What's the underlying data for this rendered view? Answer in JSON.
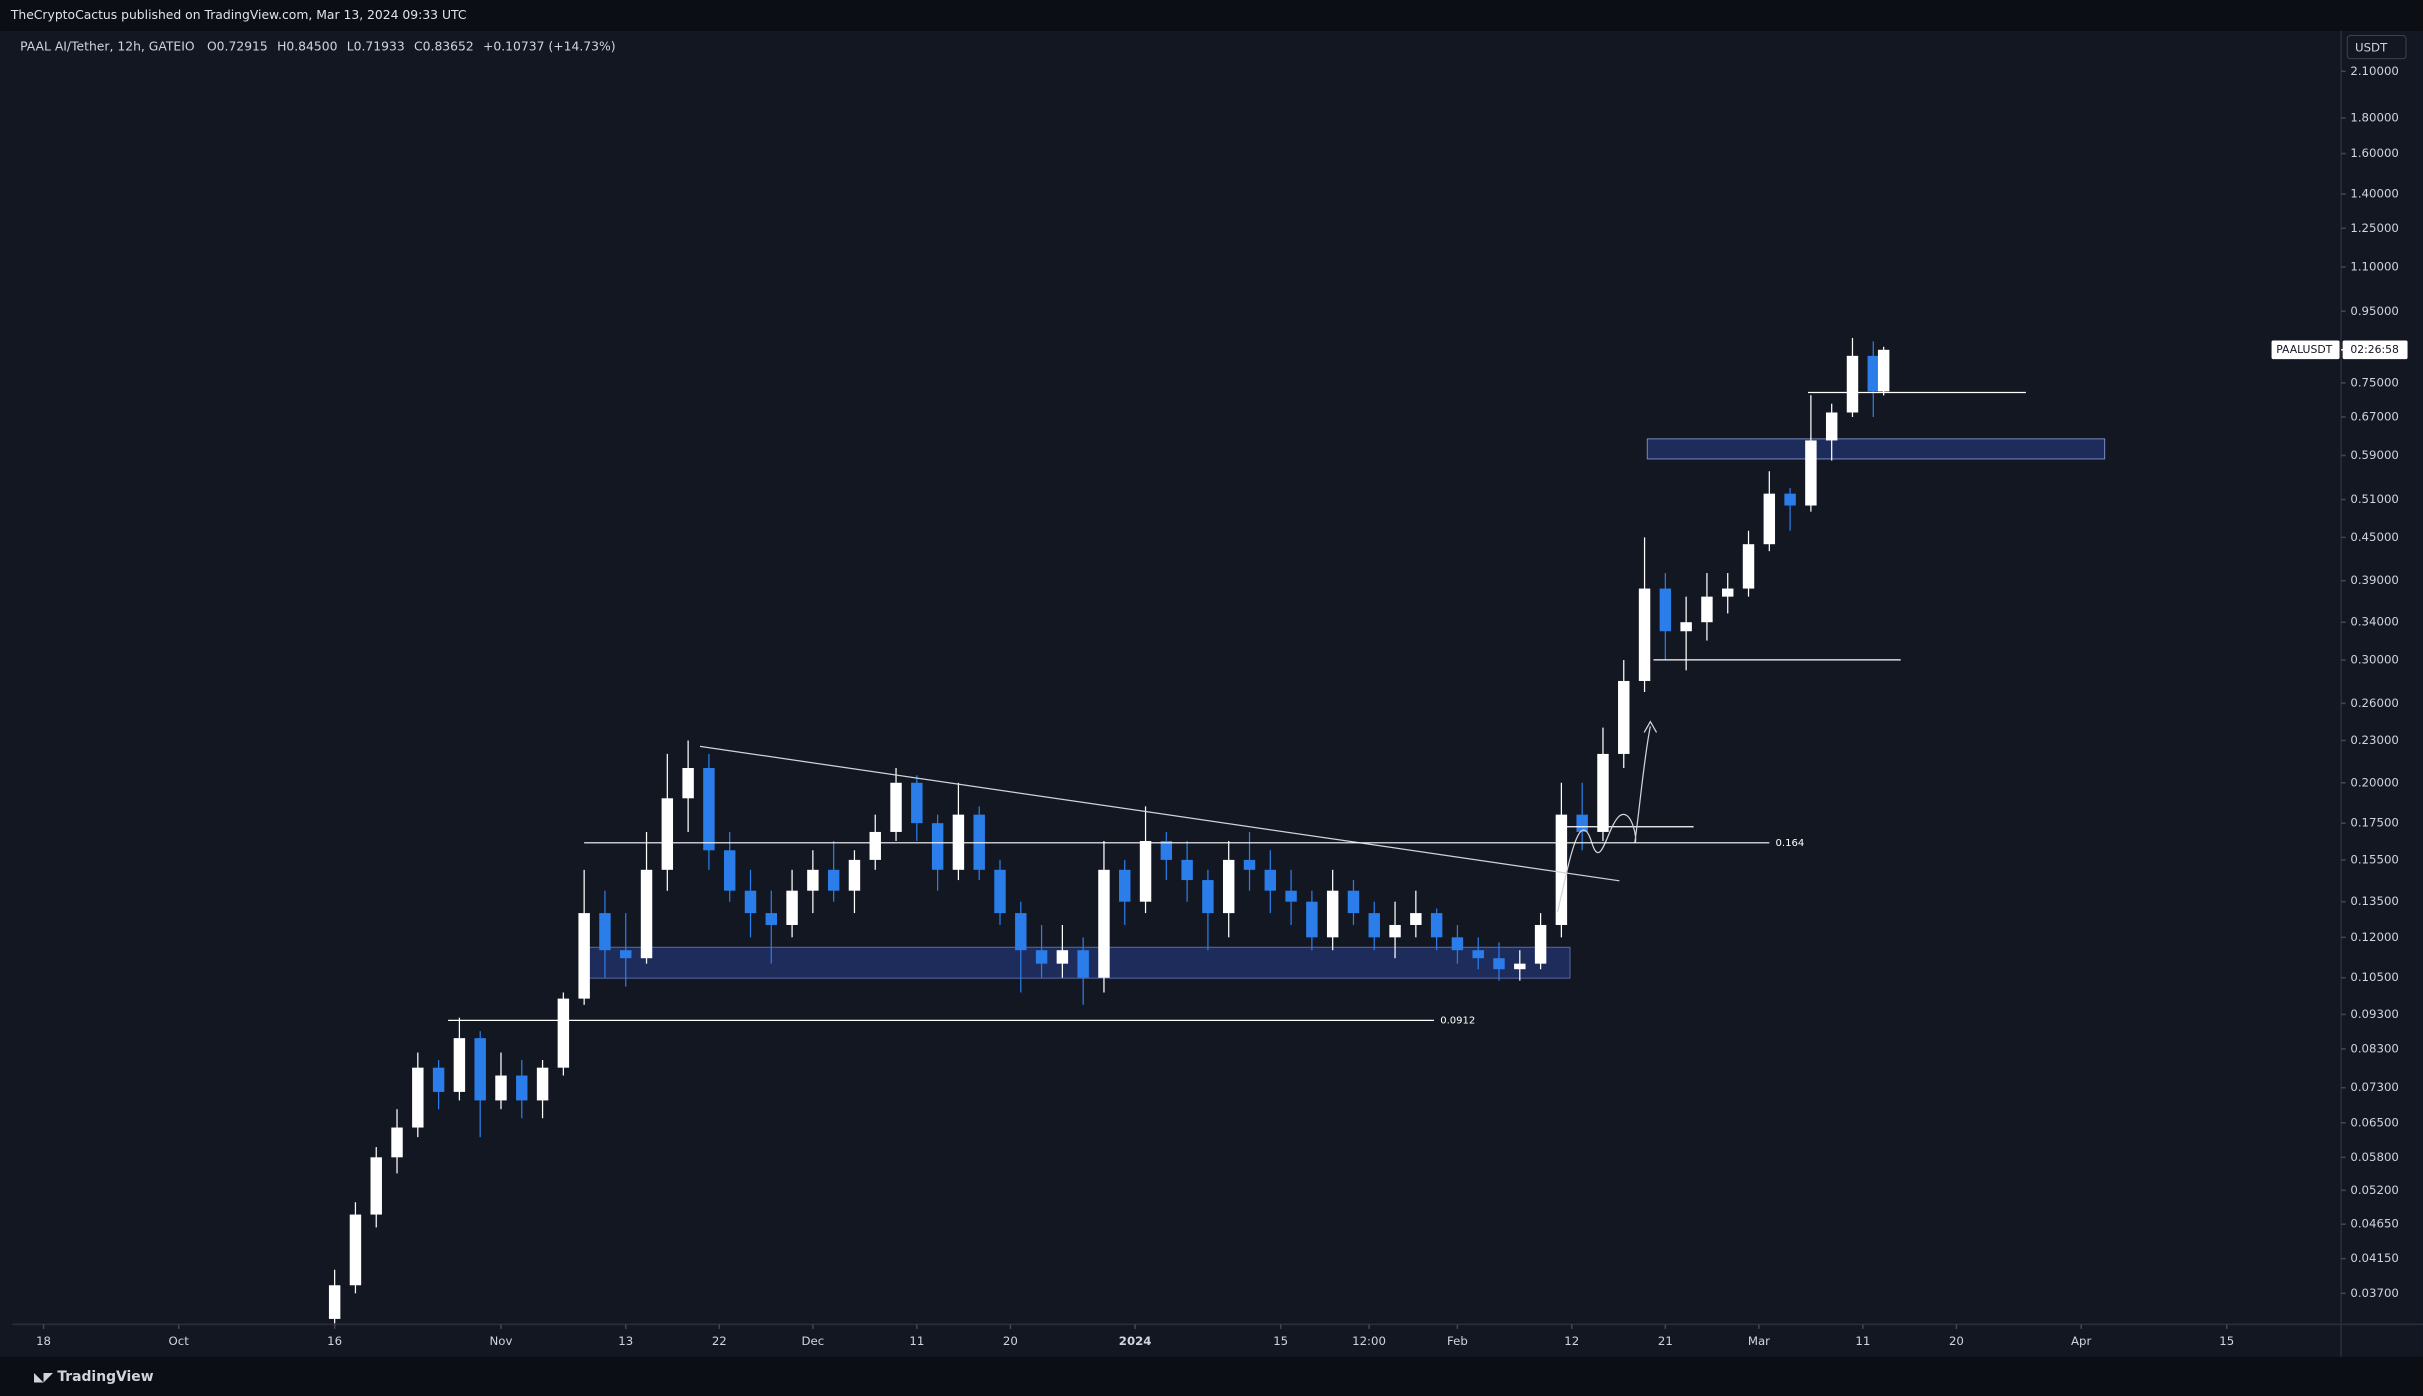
{
  "header": {
    "publisher": "TheCryptoCactus published on TradingView.com, Mar 13, 2024 09:33 UTC"
  },
  "chart_data": {
    "type": "candlestick",
    "legend": {
      "symbol": "PAAL AI/Tether, 12h, GATEIO",
      "open": "O0.72915",
      "high": "H0.84500",
      "low": "L0.71933",
      "close": "C0.83652",
      "change": "+0.10737 (+14.73%)"
    },
    "x": [
      "2023-10-16",
      "2023-10-18",
      "2023-10-20",
      "2023-10-22",
      "2023-10-24",
      "2023-10-26",
      "2023-10-28",
      "2023-10-30",
      "2023-11-01",
      "2023-11-03",
      "2023-11-05",
      "2023-11-07",
      "2023-11-09",
      "2023-11-11",
      "2023-11-13",
      "2023-11-15",
      "2023-11-17",
      "2023-11-19",
      "2023-11-21",
      "2023-11-23",
      "2023-11-25",
      "2023-11-27",
      "2023-11-29",
      "2023-12-01",
      "2023-12-03",
      "2023-12-05",
      "2023-12-07",
      "2023-12-09",
      "2023-12-11",
      "2023-12-13",
      "2023-12-15",
      "2023-12-17",
      "2023-12-19",
      "2023-12-21",
      "2023-12-23",
      "2023-12-25",
      "2023-12-27",
      "2023-12-29",
      "2023-12-31",
      "2024-01-02",
      "2024-01-04",
      "2024-01-06",
      "2024-01-08",
      "2024-01-10",
      "2024-01-12",
      "2024-01-14",
      "2024-01-16",
      "2024-01-18",
      "2024-01-20",
      "2024-01-22",
      "2024-01-24",
      "2024-01-26",
      "2024-01-28",
      "2024-01-30",
      "2024-02-01",
      "2024-02-03",
      "2024-02-05",
      "2024-02-07",
      "2024-02-09",
      "2024-02-11",
      "2024-02-13",
      "2024-02-15",
      "2024-02-17",
      "2024-02-19",
      "2024-02-21",
      "2024-02-23",
      "2024-02-25",
      "2024-02-27",
      "2024-02-29",
      "2024-03-02",
      "2024-03-04",
      "2024-03-06",
      "2024-03-08",
      "2024-03-10",
      "2024-03-12",
      "2024-03-13"
    ],
    "open": [
      0.034,
      0.038,
      0.048,
      0.058,
      0.064,
      0.078,
      0.072,
      0.086,
      0.07,
      0.076,
      0.07,
      0.078,
      0.098,
      0.13,
      0.115,
      0.112,
      0.15,
      0.19,
      0.21,
      0.16,
      0.14,
      0.13,
      0.125,
      0.14,
      0.15,
      0.14,
      0.155,
      0.17,
      0.2,
      0.175,
      0.15,
      0.18,
      0.15,
      0.13,
      0.115,
      0.11,
      0.115,
      0.105,
      0.15,
      0.135,
      0.165,
      0.155,
      0.145,
      0.13,
      0.155,
      0.15,
      0.14,
      0.135,
      0.12,
      0.14,
      0.13,
      0.12,
      0.125,
      0.13,
      0.12,
      0.115,
      0.112,
      0.108,
      0.11,
      0.125,
      0.18,
      0.17,
      0.22,
      0.28,
      0.38,
      0.33,
      0.34,
      0.37,
      0.38,
      0.44,
      0.52,
      0.5,
      0.62,
      0.68,
      0.82,
      0.72915
    ],
    "high": [
      0.04,
      0.05,
      0.06,
      0.068,
      0.082,
      0.08,
      0.092,
      0.088,
      0.082,
      0.08,
      0.08,
      0.1,
      0.15,
      0.14,
      0.13,
      0.17,
      0.22,
      0.23,
      0.22,
      0.17,
      0.15,
      0.14,
      0.15,
      0.16,
      0.165,
      0.16,
      0.18,
      0.21,
      0.205,
      0.18,
      0.2,
      0.185,
      0.155,
      0.135,
      0.125,
      0.125,
      0.12,
      0.165,
      0.155,
      0.185,
      0.17,
      0.165,
      0.15,
      0.165,
      0.17,
      0.16,
      0.15,
      0.14,
      0.15,
      0.145,
      0.135,
      0.135,
      0.14,
      0.132,
      0.125,
      0.12,
      0.118,
      0.115,
      0.13,
      0.2,
      0.2,
      0.24,
      0.3,
      0.45,
      0.4,
      0.37,
      0.4,
      0.4,
      0.46,
      0.56,
      0.53,
      0.72,
      0.7,
      0.87,
      0.86,
      0.845
    ],
    "low": [
      0.0335,
      0.037,
      0.046,
      0.055,
      0.062,
      0.068,
      0.07,
      0.062,
      0.068,
      0.066,
      0.066,
      0.076,
      0.096,
      0.105,
      0.102,
      0.11,
      0.14,
      0.17,
      0.15,
      0.135,
      0.12,
      0.11,
      0.12,
      0.13,
      0.135,
      0.13,
      0.15,
      0.165,
      0.165,
      0.14,
      0.145,
      0.145,
      0.125,
      0.1,
      0.105,
      0.105,
      0.096,
      0.1,
      0.125,
      0.13,
      0.145,
      0.135,
      0.115,
      0.12,
      0.14,
      0.13,
      0.125,
      0.115,
      0.115,
      0.125,
      0.115,
      0.112,
      0.12,
      0.115,
      0.11,
      0.108,
      0.104,
      0.104,
      0.108,
      0.12,
      0.16,
      0.165,
      0.21,
      0.27,
      0.3,
      0.29,
      0.32,
      0.35,
      0.37,
      0.43,
      0.46,
      0.49,
      0.58,
      0.67,
      0.67,
      0.71933
    ],
    "close": [
      0.038,
      0.048,
      0.058,
      0.064,
      0.078,
      0.072,
      0.086,
      0.07,
      0.076,
      0.07,
      0.078,
      0.098,
      0.13,
      0.115,
      0.112,
      0.15,
      0.19,
      0.21,
      0.16,
      0.14,
      0.13,
      0.125,
      0.14,
      0.15,
      0.14,
      0.155,
      0.17,
      0.2,
      0.175,
      0.15,
      0.18,
      0.15,
      0.13,
      0.115,
      0.11,
      0.115,
      0.105,
      0.15,
      0.135,
      0.165,
      0.155,
      0.145,
      0.13,
      0.155,
      0.15,
      0.14,
      0.135,
      0.12,
      0.14,
      0.13,
      0.12,
      0.125,
      0.13,
      0.12,
      0.115,
      0.112,
      0.108,
      0.11,
      0.125,
      0.18,
      0.17,
      0.22,
      0.28,
      0.38,
      0.33,
      0.34,
      0.37,
      0.38,
      0.44,
      0.52,
      0.5,
      0.62,
      0.68,
      0.82,
      0.72915,
      0.83652
    ],
    "up_color": "#ffffff",
    "down_color": "#2b7de9",
    "log_scale": true,
    "grid": false,
    "ylim": [
      0.0334,
      2.4
    ],
    "yticks": [
      {
        "value": 2.1,
        "label": "2.10000"
      },
      {
        "value": 1.8,
        "label": "1.80000"
      },
      {
        "value": 1.6,
        "label": "1.60000"
      },
      {
        "value": 1.4,
        "label": "1.40000"
      },
      {
        "value": 1.25,
        "label": "1.25000"
      },
      {
        "value": 1.1,
        "label": "1.10000"
      },
      {
        "value": 0.95,
        "label": "0.95000"
      },
      {
        "value": 0.75,
        "label": "0.75000"
      },
      {
        "value": 0.67,
        "label": "0.67000"
      },
      {
        "value": 0.59,
        "label": "0.59000"
      },
      {
        "value": 0.51,
        "label": "0.51000"
      },
      {
        "value": 0.45,
        "label": "0.45000"
      },
      {
        "value": 0.39,
        "label": "0.39000"
      },
      {
        "value": 0.34,
        "label": "0.34000"
      },
      {
        "value": 0.3,
        "label": "0.30000"
      },
      {
        "value": 0.26,
        "label": "0.26000"
      },
      {
        "value": 0.23,
        "label": "0.23000"
      },
      {
        "value": 0.2,
        "label": "0.20000"
      },
      {
        "value": 0.175,
        "label": "0.17500"
      },
      {
        "value": 0.155,
        "label": "0.15500"
      },
      {
        "value": 0.135,
        "label": "0.13500"
      },
      {
        "value": 0.12,
        "label": "0.12000"
      },
      {
        "value": 0.105,
        "label": "0.10500"
      },
      {
        "value": 0.093,
        "label": "0.09300"
      },
      {
        "value": 0.083,
        "label": "0.08300"
      },
      {
        "value": 0.073,
        "label": "0.07300"
      },
      {
        "value": 0.065,
        "label": "0.06500"
      },
      {
        "value": 0.058,
        "label": "0.05800"
      },
      {
        "value": 0.052,
        "label": "0.05200"
      },
      {
        "value": 0.0465,
        "label": "0.04650"
      },
      {
        "value": 0.0415,
        "label": "0.04150"
      },
      {
        "value": 0.037,
        "label": "0.03700"
      }
    ],
    "xlim": [
      "2023-09-15",
      "2024-04-26"
    ],
    "xticks": [
      {
        "value": "2023-09-18",
        "label": "18"
      },
      {
        "value": "2023-10-01",
        "label": "Oct"
      },
      {
        "value": "2023-10-16",
        "label": "16"
      },
      {
        "value": "2023-11-01",
        "label": "Nov"
      },
      {
        "value": "2023-11-13",
        "label": "13"
      },
      {
        "value": "2023-11-22",
        "label": "22"
      },
      {
        "value": "2023-12-01",
        "label": "Dec"
      },
      {
        "value": "2023-12-11",
        "label": "11"
      },
      {
        "value": "2023-12-20",
        "label": "20"
      },
      {
        "value": "2024-01-01",
        "label": "2024"
      },
      {
        "value": "2024-01-15",
        "label": "15"
      },
      {
        "value": "2024-01-23T12:00",
        "label": "12:00"
      },
      {
        "value": "2024-02-01",
        "label": "Feb"
      },
      {
        "value": "2024-02-12",
        "label": "12"
      },
      {
        "value": "2024-02-21",
        "label": "21"
      },
      {
        "value": "2024-03-01",
        "label": "Mar"
      },
      {
        "value": "2024-03-11",
        "label": "11"
      },
      {
        "value": "2024-03-20",
        "label": "20"
      },
      {
        "value": "2024-04-01",
        "label": "Apr"
      },
      {
        "value": "2024-04-15",
        "label": "15"
      }
    ],
    "currency": "USDT",
    "symbol_tag": "PAALUSDT",
    "countdown": "02:26:58",
    "levels": [
      0.164,
      0.0912
    ]
  },
  "footer": {
    "brand": "TradingView"
  }
}
